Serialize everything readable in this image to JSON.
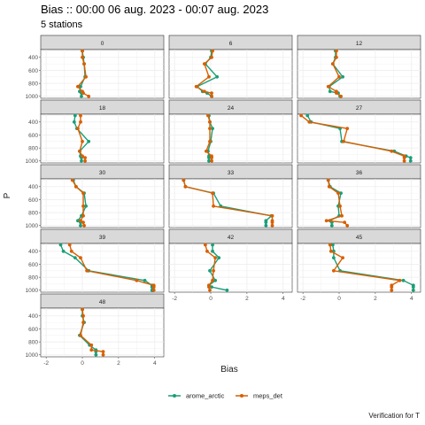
{
  "title": "Bias :: 00:00 06 aug. 2023 - 00:07 aug. 2023",
  "subtitle": "5 stations",
  "caption": "Verification for T",
  "chart_data": {
    "type": "line",
    "facet_by": "lead_time",
    "x_label": "Bias",
    "y_label": "P",
    "y_reversed": true,
    "y_ticks": [
      400,
      600,
      800,
      1000
    ],
    "y_range": [
      1030,
      280
    ],
    "x_range": [
      -2.3,
      4.5
    ],
    "x_ticks": [
      -2,
      0,
      2,
      4
    ],
    "pressure_levels": [
      300,
      400,
      500,
      700,
      850,
      925,
      950,
      1000
    ],
    "legend_position": "bottom",
    "series": [
      {
        "name": "arome_arctic",
        "color": "#1b9e77"
      },
      {
        "name": "meps_det",
        "color": "#d95f02"
      }
    ],
    "panels": [
      {
        "label": "0",
        "arome_arctic": [
          0.0,
          0.05,
          0.1,
          0.15,
          -0.1,
          -0.15,
          -0.05,
          -0.05
        ],
        "meps_det": [
          0.0,
          0.0,
          0.1,
          0.2,
          -0.25,
          0.0,
          0.05,
          0.35
        ]
      },
      {
        "label": "6",
        "arome_arctic": [
          0.05,
          0.0,
          -0.3,
          0.35,
          -0.75,
          -0.45,
          -0.2,
          0.05
        ],
        "meps_det": [
          0.1,
          0.05,
          -0.35,
          -0.1,
          -0.8,
          -0.35,
          0.05,
          0.05
        ]
      },
      {
        "label": "12",
        "arome_arctic": [
          -0.2,
          -0.2,
          -0.35,
          0.2,
          -0.55,
          -0.5,
          -0.05,
          0.05
        ],
        "meps_det": [
          -0.15,
          -0.15,
          -0.35,
          0.0,
          -0.6,
          -0.15,
          -0.15,
          0.1
        ]
      },
      {
        "label": "18",
        "arome_arctic": [
          -0.4,
          -0.45,
          -0.3,
          0.35,
          -0.15,
          -0.1,
          -0.05,
          -0.05
        ],
        "meps_det": [
          -0.1,
          -0.1,
          -0.25,
          0.0,
          -0.15,
          0.0,
          0.15,
          0.15
        ]
      },
      {
        "label": "24",
        "arome_arctic": [
          -0.1,
          -0.05,
          0.1,
          0.0,
          -0.15,
          -0.1,
          -0.1,
          -0.1
        ],
        "meps_det": [
          -0.15,
          -0.05,
          -0.05,
          -0.05,
          -0.25,
          0.05,
          0.05,
          0.05
        ]
      },
      {
        "label": "27",
        "arome_arctic": [
          -1.75,
          -1.55,
          0.05,
          0.15,
          3.05,
          3.7,
          3.95,
          3.95
        ],
        "meps_det": [
          -2.1,
          -1.65,
          0.45,
          0.25,
          2.9,
          3.6,
          3.6,
          3.6
        ]
      },
      {
        "label": "30",
        "arome_arctic": [
          -0.5,
          -0.35,
          0.1,
          0.2,
          -0.05,
          -0.25,
          -0.1,
          -0.1
        ],
        "meps_det": [
          -0.55,
          -0.35,
          0.05,
          0.05,
          0.05,
          -0.1,
          0.05,
          0.1
        ]
      },
      {
        "label": "33",
        "arome_arctic": [
          -1.5,
          -1.4,
          0.15,
          0.55,
          3.35,
          3.05,
          3.05,
          3.05
        ],
        "meps_det": [
          -1.5,
          -1.4,
          0.1,
          0.15,
          3.4,
          3.4,
          3.4,
          3.4
        ]
      },
      {
        "label": "36",
        "arome_arctic": [
          -0.6,
          -0.5,
          0.1,
          -0.05,
          0.0,
          -0.5,
          -0.4,
          -0.4
        ],
        "meps_det": [
          -0.6,
          -0.55,
          -0.05,
          0.05,
          0.15,
          -0.7,
          0.3,
          0.45
        ]
      },
      {
        "label": "39",
        "arome_arctic": [
          -1.2,
          -1.05,
          -0.4,
          0.35,
          3.45,
          3.85,
          3.85,
          3.85
        ],
        "meps_det": [
          -0.7,
          -0.6,
          -0.1,
          0.25,
          3.0,
          3.95,
          3.95,
          3.95
        ]
      },
      {
        "label": "42",
        "arome_arctic": [
          0.1,
          0.1,
          0.45,
          -0.05,
          0.25,
          -0.1,
          0.05,
          0.9
        ],
        "meps_det": [
          -0.3,
          -0.2,
          0.25,
          0.15,
          0.1,
          -0.1,
          -0.1,
          -0.05
        ]
      },
      {
        "label": "45",
        "arome_arctic": [
          -0.35,
          -0.3,
          -0.3,
          0.05,
          3.55,
          4.1,
          4.1,
          4.1
        ],
        "meps_det": [
          -0.5,
          -0.45,
          0.2,
          -0.3,
          3.35,
          2.9,
          2.9,
          2.9
        ]
      },
      {
        "label": "48",
        "arome_arctic": [
          0.0,
          0.0,
          0.1,
          -0.15,
          0.4,
          0.75,
          0.75,
          0.75
        ],
        "meps_det": [
          0.0,
          0.05,
          0.05,
          -0.1,
          0.5,
          0.5,
          1.15,
          1.15
        ]
      }
    ]
  }
}
